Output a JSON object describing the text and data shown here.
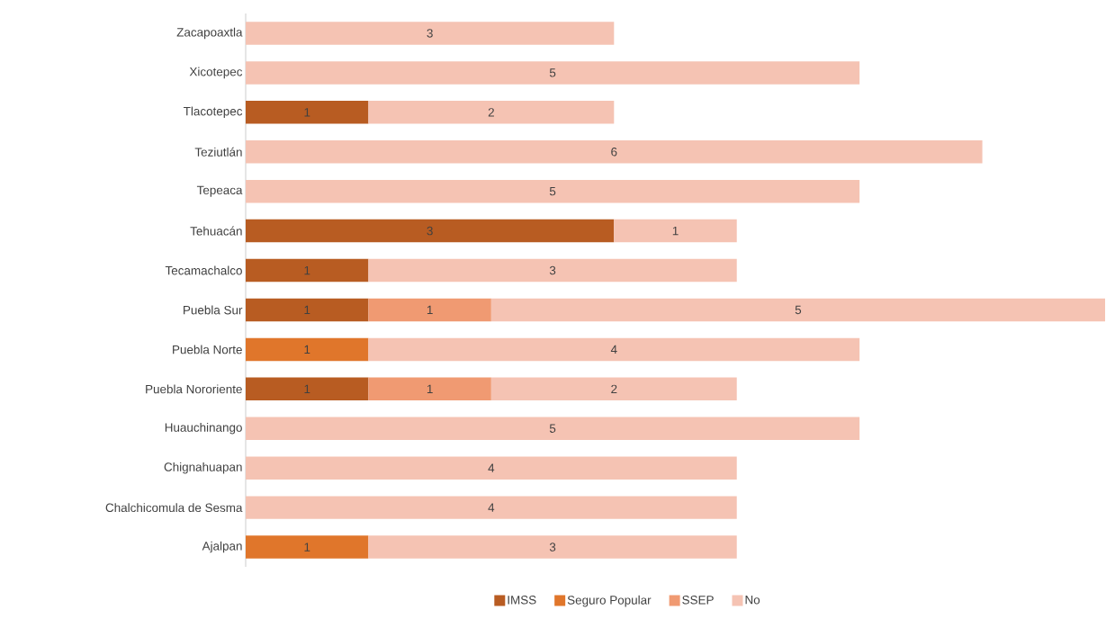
{
  "chart_data": {
    "type": "bar",
    "orientation": "horizontal",
    "stacked": true,
    "data_labels": true,
    "legend": "bottom",
    "categories": [
      "Zacapoaxtla",
      "Xicotepec",
      "Tlacotepec",
      "Teziutlán",
      "Tepeaca",
      "Tehuacán",
      "Tecamachalco",
      "Puebla Sur",
      "Puebla Norte",
      "Puebla Nororiente",
      "Huauchinango",
      "Chignahuapan",
      "Chalchicomula de Sesma",
      "Ajalpan"
    ],
    "series": [
      {
        "name": "IMSS",
        "color": "#b85c22",
        "values": [
          null,
          null,
          1,
          null,
          null,
          3,
          1,
          1,
          null,
          1,
          null,
          null,
          null,
          null
        ]
      },
      {
        "name": "Seguro Popular",
        "color": "#e0762b",
        "values": [
          null,
          null,
          null,
          null,
          null,
          null,
          null,
          null,
          1,
          null,
          null,
          null,
          null,
          1
        ]
      },
      {
        "name": "SSEP",
        "color": "#f09a72",
        "values": [
          null,
          null,
          null,
          null,
          null,
          null,
          null,
          1,
          null,
          1,
          null,
          null,
          null,
          null
        ]
      },
      {
        "name": "No",
        "color": "#f5c3b3",
        "values": [
          3,
          5,
          2,
          6,
          5,
          1,
          3,
          5,
          4,
          2,
          5,
          4,
          4,
          3
        ]
      }
    ]
  }
}
